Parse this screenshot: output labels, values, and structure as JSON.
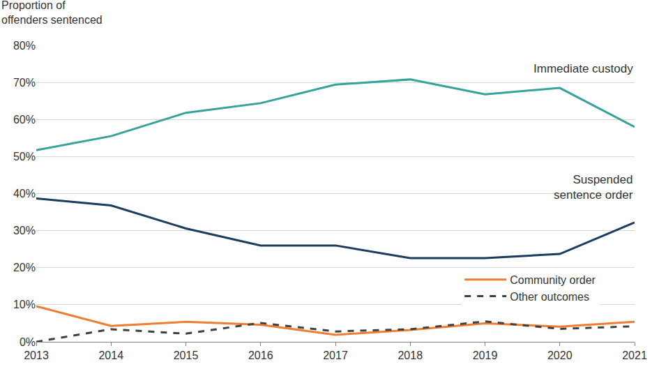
{
  "chart_data": {
    "type": "line",
    "y_label": "Proportion of\noffenders sentenced",
    "x": [
      2013,
      2014,
      2015,
      2016,
      2017,
      2018,
      2019,
      2020,
      2021
    ],
    "xlim": [
      2013,
      2021
    ],
    "xticks": [
      2013,
      2014,
      2015,
      2016,
      2017,
      2018,
      2019,
      2020,
      2021
    ],
    "ylim": [
      0,
      80
    ],
    "yticks": [
      {
        "value": 0,
        "label": "0%"
      },
      {
        "value": 10,
        "label": "10%"
      },
      {
        "value": 20,
        "label": "20%"
      },
      {
        "value": 30,
        "label": "30%"
      },
      {
        "value": 40,
        "label": "40%"
      },
      {
        "value": 50,
        "label": "50%"
      },
      {
        "value": 60,
        "label": "60%"
      },
      {
        "value": 70,
        "label": "70%"
      },
      {
        "value": 80,
        "label": "80%"
      }
    ],
    "grid": true,
    "legend": "right",
    "annotations": [
      "Immediate custody",
      "Suspended\nsentence order"
    ],
    "series": [
      {
        "color": "#36a39b",
        "line_style": "solid",
        "values": [
          51.7,
          55.5,
          61.8,
          64.4,
          69.4,
          70.8,
          66.8,
          68.5,
          58.0
        ]
      },
      {
        "color": "#1c3b5e",
        "line_style": "solid",
        "values": [
          38.7,
          36.8,
          30.6,
          26.0,
          26.0,
          22.6,
          22.6,
          23.7,
          32.2
        ]
      },
      {
        "name": "Community order",
        "color": "#ed7d31",
        "line_style": "solid",
        "values": [
          9.6,
          4.3,
          5.4,
          4.6,
          1.9,
          3.2,
          5.0,
          4.1,
          5.4
        ]
      },
      {
        "name": "Other outcomes",
        "color": "#404040",
        "line_style": "dash",
        "values": [
          0.0,
          3.4,
          2.2,
          5.1,
          2.8,
          3.4,
          5.5,
          3.5,
          4.2
        ]
      }
    ]
  }
}
